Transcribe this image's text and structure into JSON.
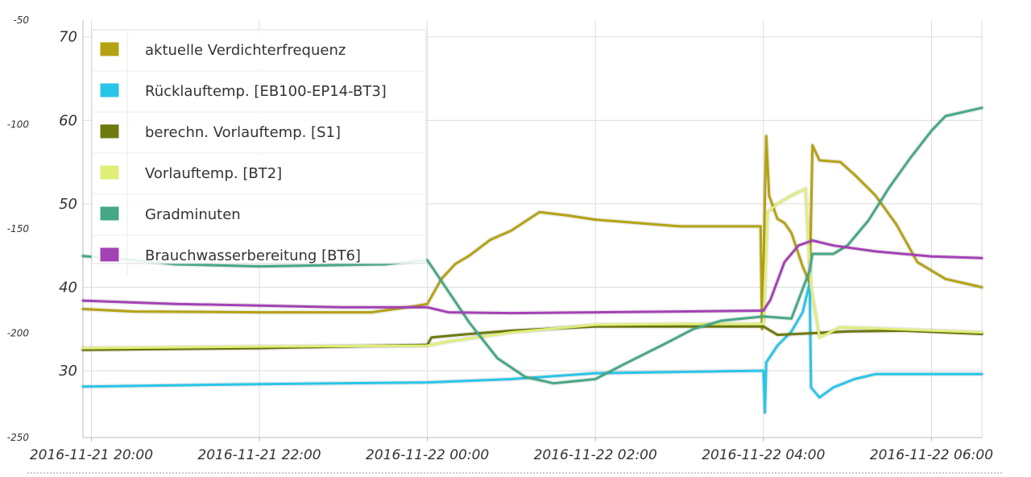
{
  "chart_data": {
    "type": "line",
    "x_range": [
      "2016-11-21 19:54",
      "2016-11-22 06:36"
    ],
    "x_ticks": [
      "2016-11-21 20:00",
      "2016-11-21 22:00",
      "2016-11-22 00:00",
      "2016-11-22 02:00",
      "2016-11-22 04:00",
      "2016-11-22 06:00"
    ],
    "y_left": {
      "range": [
        -250,
        -50
      ],
      "ticks": [
        "-50",
        "-100",
        "-150",
        "-200",
        "-250"
      ]
    },
    "y_right": {
      "range": [
        22,
        72
      ],
      "ticks": [
        "70",
        "60",
        "50",
        "40",
        "30"
      ]
    },
    "grid": true,
    "legend_position": "top-left",
    "series": [
      {
        "name": "aktuelle Verdichterfrequenz",
        "color": "#b5a211",
        "axis": "right",
        "points": [
          [
            "2016-11-21 19:54",
            37.4
          ],
          [
            "2016-11-21 20:30",
            37.1
          ],
          [
            "2016-11-21 22:00",
            37.0
          ],
          [
            "2016-11-21 23:20",
            37.0
          ],
          [
            "2016-11-21 23:50",
            37.7
          ],
          [
            "2016-11-22 00:00",
            38.0
          ],
          [
            "2016-11-22 00:10",
            41.0
          ],
          [
            "2016-11-22 00:20",
            42.8
          ],
          [
            "2016-11-22 00:30",
            43.8
          ],
          [
            "2016-11-22 00:45",
            45.7
          ],
          [
            "2016-11-22 01:00",
            46.8
          ],
          [
            "2016-11-22 01:20",
            49.0
          ],
          [
            "2016-11-22 01:40",
            48.6
          ],
          [
            "2016-11-22 02:00",
            48.1
          ],
          [
            "2016-11-22 02:30",
            47.7
          ],
          [
            "2016-11-22 03:00",
            47.3
          ],
          [
            "2016-11-22 03:58",
            47.3
          ],
          [
            "2016-11-22 03:59",
            35.0
          ],
          [
            "2016-11-22 04:02",
            58.1
          ],
          [
            "2016-11-22 04:04",
            51.0
          ],
          [
            "2016-11-22 04:10",
            48.2
          ],
          [
            "2016-11-22 04:15",
            47.7
          ],
          [
            "2016-11-22 04:20",
            46.5
          ],
          [
            "2016-11-22 04:28",
            42.5
          ],
          [
            "2016-11-22 04:33",
            40.5
          ],
          [
            "2016-11-22 04:35",
            57.0
          ],
          [
            "2016-11-22 04:40",
            55.2
          ],
          [
            "2016-11-22 04:55",
            55.0
          ],
          [
            "2016-11-22 05:05",
            53.5
          ],
          [
            "2016-11-22 05:20",
            51.0
          ],
          [
            "2016-11-22 05:35",
            47.5
          ],
          [
            "2016-11-22 05:50",
            43.0
          ],
          [
            "2016-11-22 06:10",
            41.0
          ],
          [
            "2016-11-22 06:36",
            40.0
          ]
        ]
      },
      {
        "name": "Rücklauftemp. [EB100-EP14-BT3]",
        "color": "#27c6e8",
        "axis": "right",
        "points": [
          [
            "2016-11-21 19:54",
            28.1
          ],
          [
            "2016-11-21 22:00",
            28.4
          ],
          [
            "2016-11-22 00:00",
            28.6
          ],
          [
            "2016-11-22 01:00",
            29.0
          ],
          [
            "2016-11-22 02:00",
            29.7
          ],
          [
            "2016-11-22 03:58",
            30.0
          ],
          [
            "2016-11-22 04:00",
            30.0
          ],
          [
            "2016-11-22 04:01",
            25.0
          ],
          [
            "2016-11-22 04:02",
            31.0
          ],
          [
            "2016-11-22 04:10",
            33.0
          ],
          [
            "2016-11-22 04:20",
            34.7
          ],
          [
            "2016-11-22 04:28",
            37.0
          ],
          [
            "2016-11-22 04:33",
            40.5
          ],
          [
            "2016-11-22 04:34",
            28.0
          ],
          [
            "2016-11-22 04:40",
            26.8
          ],
          [
            "2016-11-22 04:50",
            28.0
          ],
          [
            "2016-11-22 05:05",
            29.0
          ],
          [
            "2016-11-22 05:20",
            29.6
          ],
          [
            "2016-11-22 06:36",
            29.6
          ]
        ]
      },
      {
        "name": "berechn. Vorlauftemp. [S1]",
        "color": "#6e7a10",
        "axis": "right",
        "points": [
          [
            "2016-11-21 19:54",
            32.5
          ],
          [
            "2016-11-21 22:00",
            32.7
          ],
          [
            "2016-11-22 00:00",
            33.1
          ],
          [
            "2016-11-22 00:03",
            34.0
          ],
          [
            "2016-11-22 00:30",
            34.4
          ],
          [
            "2016-11-22 01:00",
            34.8
          ],
          [
            "2016-11-22 02:00",
            35.3
          ],
          [
            "2016-11-22 03:00",
            35.3
          ],
          [
            "2016-11-22 04:00",
            35.3
          ],
          [
            "2016-11-22 04:10",
            34.3
          ],
          [
            "2016-11-22 05:00",
            34.7
          ],
          [
            "2016-11-22 05:40",
            34.8
          ],
          [
            "2016-11-22 06:36",
            34.4
          ]
        ]
      },
      {
        "name": "Vorlauftemp. [BT2]",
        "color": "#e0ee78",
        "axis": "right",
        "points": [
          [
            "2016-11-21 19:54",
            32.7
          ],
          [
            "2016-11-21 22:00",
            32.9
          ],
          [
            "2016-11-22 00:00",
            33.0
          ],
          [
            "2016-11-22 00:15",
            33.5
          ],
          [
            "2016-11-22 01:00",
            34.6
          ],
          [
            "2016-11-22 02:00",
            35.5
          ],
          [
            "2016-11-22 03:00",
            35.6
          ],
          [
            "2016-11-22 04:00",
            35.6
          ],
          [
            "2016-11-22 04:03",
            49.0
          ],
          [
            "2016-11-22 04:10",
            50.0
          ],
          [
            "2016-11-22 04:20",
            51.0
          ],
          [
            "2016-11-22 04:30",
            51.8
          ],
          [
            "2016-11-22 04:34",
            40.0
          ],
          [
            "2016-11-22 04:40",
            34.0
          ],
          [
            "2016-11-22 04:55",
            35.2
          ],
          [
            "2016-11-22 05:30",
            35.0
          ],
          [
            "2016-11-22 06:36",
            34.6
          ]
        ]
      },
      {
        "name": "Gradminuten",
        "color": "#45a884",
        "axis": "left",
        "points": [
          [
            "2016-11-21 19:54",
            -163
          ],
          [
            "2016-11-21 20:30",
            -165
          ],
          [
            "2016-11-21 21:00",
            -167
          ],
          [
            "2016-11-21 22:00",
            -168
          ],
          [
            "2016-11-21 23:30",
            -167
          ],
          [
            "2016-11-22 00:00",
            -165
          ],
          [
            "2016-11-22 00:15",
            -180
          ],
          [
            "2016-11-22 00:30",
            -195
          ],
          [
            "2016-11-22 00:50",
            -212
          ],
          [
            "2016-11-22 01:10",
            -221
          ],
          [
            "2016-11-22 01:30",
            -224
          ],
          [
            "2016-11-22 02:00",
            -222
          ],
          [
            "2016-11-22 02:20",
            -215
          ],
          [
            "2016-11-22 02:50",
            -205
          ],
          [
            "2016-11-22 03:10",
            -198
          ],
          [
            "2016-11-22 03:30",
            -194
          ],
          [
            "2016-11-22 04:00",
            -192
          ],
          [
            "2016-11-22 04:20",
            -193
          ],
          [
            "2016-11-22 04:33",
            -170
          ],
          [
            "2016-11-22 04:35",
            -162
          ],
          [
            "2016-11-22 04:50",
            -162
          ],
          [
            "2016-11-22 05:00",
            -158
          ],
          [
            "2016-11-22 05:15",
            -146
          ],
          [
            "2016-11-22 05:30",
            -130
          ],
          [
            "2016-11-22 05:45",
            -116
          ],
          [
            "2016-11-22 06:00",
            -103
          ],
          [
            "2016-11-22 06:10",
            -96
          ],
          [
            "2016-11-22 06:36",
            -92
          ]
        ]
      },
      {
        "name": "Brauchwasserbereitung [BT6]",
        "color": "#a441b5",
        "axis": "right",
        "points": [
          [
            "2016-11-21 19:54",
            38.4
          ],
          [
            "2016-11-21 21:00",
            38.0
          ],
          [
            "2016-11-21 22:00",
            37.8
          ],
          [
            "2016-11-21 23:00",
            37.6
          ],
          [
            "2016-11-22 00:00",
            37.6
          ],
          [
            "2016-11-22 00:15",
            37.0
          ],
          [
            "2016-11-22 01:00",
            36.9
          ],
          [
            "2016-11-22 02:00",
            37.0
          ],
          [
            "2016-11-22 03:00",
            37.1
          ],
          [
            "2016-11-22 04:00",
            37.2
          ],
          [
            "2016-11-22 04:05",
            38.5
          ],
          [
            "2016-11-22 04:15",
            43.0
          ],
          [
            "2016-11-22 04:25",
            45.0
          ],
          [
            "2016-11-22 04:35",
            45.6
          ],
          [
            "2016-11-22 04:50",
            45.0
          ],
          [
            "2016-11-22 05:20",
            44.3
          ],
          [
            "2016-11-22 06:00",
            43.7
          ],
          [
            "2016-11-22 06:36",
            43.5
          ]
        ]
      }
    ]
  }
}
